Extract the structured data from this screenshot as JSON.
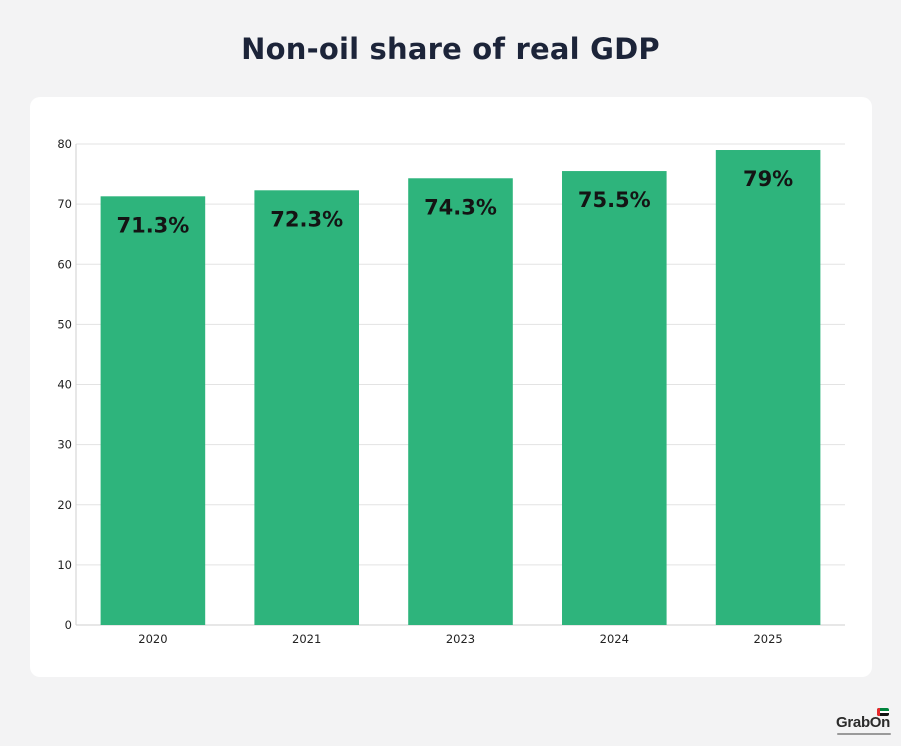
{
  "chart_data": {
    "type": "bar",
    "title": "Non-oil share of real GDP",
    "categories": [
      "2020",
      "2021",
      "2023",
      "2024",
      "2025"
    ],
    "values": [
      71.3,
      72.3,
      74.3,
      75.5,
      79
    ],
    "data_labels": [
      "71.3%",
      "72.3%",
      "74.3%",
      "75.5%",
      "79%"
    ],
    "xlabel": "",
    "ylabel": "",
    "ylim": [
      0,
      80
    ],
    "yticks": [
      0,
      10,
      20,
      30,
      40,
      50,
      60,
      70,
      80
    ],
    "grid": true,
    "bar_color": "#2eb47c",
    "grid_color": "#e3e3e3"
  },
  "branding": {
    "logo_text": "GrabOn",
    "flag_colors": [
      "#00843d",
      "#ffffff",
      "#111111"
    ],
    "flag_side_color": "#e8282b"
  }
}
